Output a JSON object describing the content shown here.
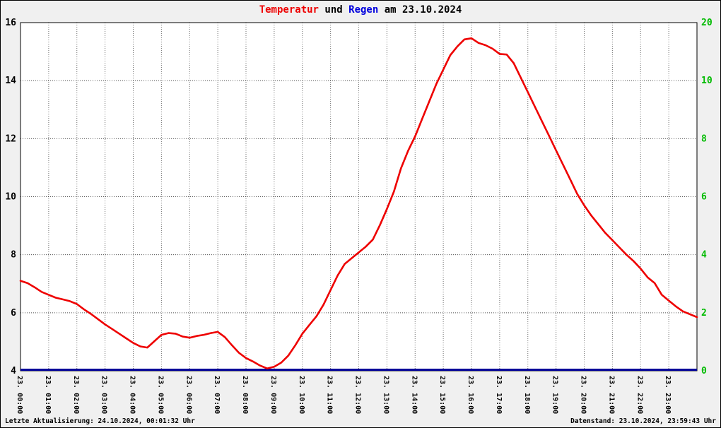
{
  "title": {
    "part1": "Temperatur",
    "part2": " und ",
    "part3": "Regen",
    "part4": " am 23.10.2024"
  },
  "footer": {
    "left": "Letzte Aktualisierung: 24.10.2024, 00:01:32 Uhr",
    "right": "Datenstand: 23.10.2024, 23:59:43 Uhr"
  },
  "chart_data": {
    "type": "line",
    "title": "Temperatur und Regen am 23.10.2024",
    "grid": true,
    "x_axis": {
      "min": 0,
      "max": 24,
      "labels": [
        "23. 00:00",
        "23. 01:00",
        "23. 02:00",
        "23. 03:00",
        "23. 04:00",
        "23. 05:00",
        "23. 06:00",
        "23. 07:00",
        "23. 08:00",
        "23. 09:00",
        "23. 10:00",
        "23. 11:00",
        "23. 12:00",
        "23. 13:00",
        "23. 14:00",
        "23. 15:00",
        "23. 16:00",
        "23. 17:00",
        "23. 18:00",
        "23. 19:00",
        "23. 20:00",
        "23. 21:00",
        "23. 22:00",
        "23. 23:00"
      ]
    },
    "left_axis": {
      "min": 4,
      "max": 16,
      "ticks": [
        16,
        14,
        12,
        10,
        8,
        6,
        4
      ],
      "color": "#000000"
    },
    "right_axis": {
      "ticks": [
        "20",
        "10",
        "8",
        "6",
        "4",
        "2",
        "0"
      ],
      "color": "#00bb00"
    },
    "series": [
      {
        "name": "Temperatur",
        "axis": "left",
        "color": "#ee0000",
        "x_start": 0,
        "x_step": 0.25,
        "values": [
          7.1,
          7.02,
          6.88,
          6.72,
          6.62,
          6.52,
          6.46,
          6.4,
          6.3,
          6.12,
          5.96,
          5.78,
          5.6,
          5.44,
          5.28,
          5.12,
          4.96,
          4.84,
          4.8,
          5.02,
          5.24,
          5.3,
          5.28,
          5.18,
          5.14,
          5.2,
          5.24,
          5.3,
          5.34,
          5.16,
          4.88,
          4.62,
          4.44,
          4.32,
          4.18,
          4.08,
          4.14,
          4.28,
          4.52,
          4.88,
          5.28,
          5.58,
          5.88,
          6.28,
          6.78,
          7.28,
          7.68,
          7.88,
          8.08,
          8.28,
          8.52,
          9.02,
          9.58,
          10.18,
          10.98,
          11.58,
          12.08,
          12.68,
          13.28,
          13.88,
          14.38,
          14.88,
          15.18,
          15.42,
          15.46,
          15.3,
          15.22,
          15.1,
          14.92,
          14.9,
          14.6,
          14.1,
          13.6,
          13.1,
          12.6,
          12.1,
          11.6,
          11.1,
          10.6,
          10.1,
          9.7,
          9.35,
          9.05,
          8.75,
          8.5,
          8.25,
          8.0,
          7.78,
          7.52,
          7.22,
          7.02,
          6.62,
          6.42,
          6.22,
          6.05,
          5.95,
          5.85
        ]
      },
      {
        "name": "Regen",
        "axis": "right",
        "color": "#000099",
        "x": [
          0,
          24
        ],
        "values": [
          0,
          0
        ]
      }
    ]
  }
}
